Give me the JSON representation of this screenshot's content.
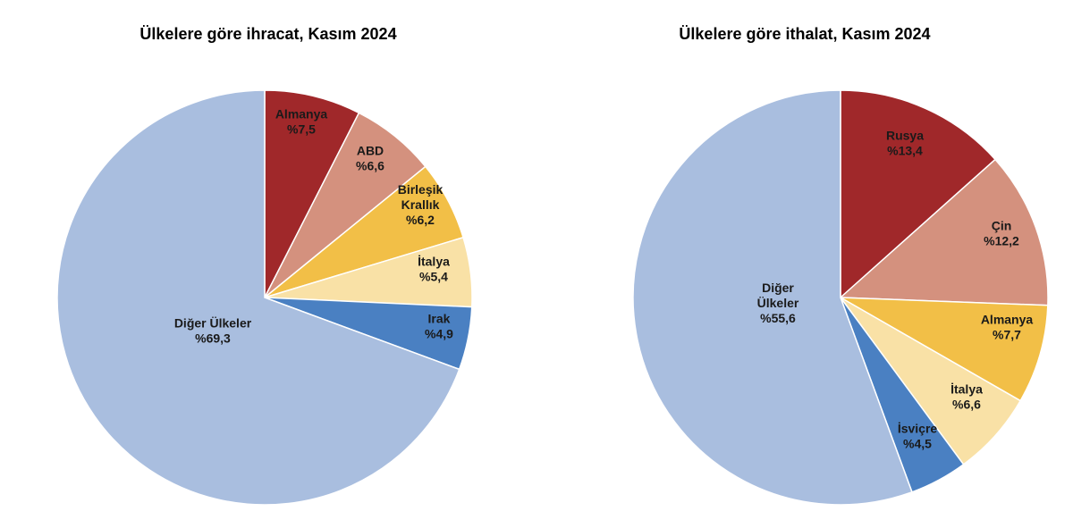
{
  "chart_data": [
    {
      "type": "pie",
      "title": "Ülkelere göre ihracat, Kasım 2024",
      "slices": [
        {
          "label": "Almanya",
          "value_text": "%7,5",
          "value": 7.5,
          "color": "#A0282A"
        },
        {
          "label": "ABD",
          "value_text": "%6,6",
          "value": 6.6,
          "color": "#D4917E"
        },
        {
          "label": "Birleşik Krallık",
          "value_text": "%6,2",
          "value": 6.2,
          "color": "#F2BF47"
        },
        {
          "label": "İtalya",
          "value_text": "%5,4",
          "value": 5.4,
          "color": "#F9E1A6"
        },
        {
          "label": "Irak",
          "value_text": "%4,9",
          "value": 4.9,
          "color": "#4A80C2"
        },
        {
          "label": "Diğer Ülkeler",
          "value_text": "%69,3",
          "value": 69.3,
          "color": "#A9BEDF"
        }
      ]
    },
    {
      "type": "pie",
      "title": "Ülkelere göre ithalat, Kasım 2024",
      "slices": [
        {
          "label": "Rusya",
          "value_text": "%13,4",
          "value": 13.4,
          "color": "#A0282A"
        },
        {
          "label": "Çin",
          "value_text": "%12,2",
          "value": 12.2,
          "color": "#D4917E"
        },
        {
          "label": "Almanya",
          "value_text": "%7,7",
          "value": 7.7,
          "color": "#F2BF47"
        },
        {
          "label": "İtalya",
          "value_text": "%6,6",
          "value": 6.6,
          "color": "#F9E1A6"
        },
        {
          "label": "İsviçre",
          "value_text": "%4,5",
          "value": 4.5,
          "color": "#4A80C2"
        },
        {
          "label": "Diğer Ülkeler",
          "value_text": "%55,6",
          "value": 55.6,
          "color": "#A9BEDF"
        }
      ]
    }
  ]
}
